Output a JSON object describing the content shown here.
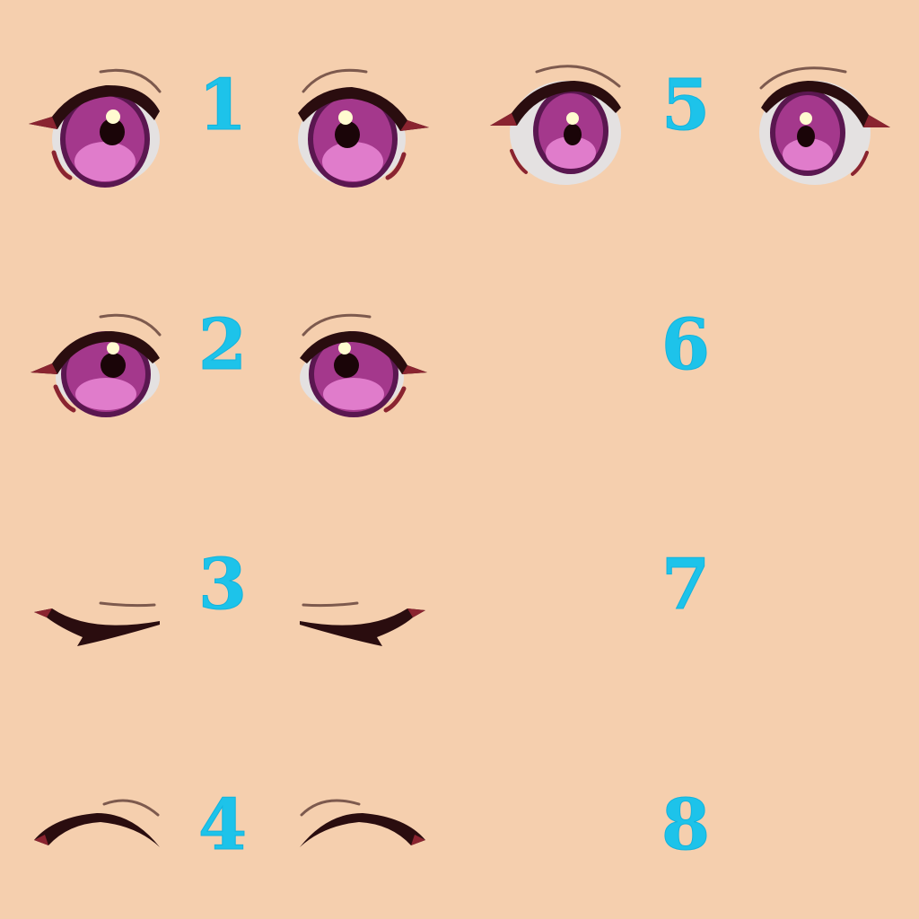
{
  "colors": {
    "background": "#f5cfae",
    "number": "#1dc3ea",
    "iris": "#a4388c",
    "iris_dark": "#5a1750",
    "iris_light": "#e07ccb",
    "pupil": "#1a0508",
    "lash": "#2a0d0f",
    "lash_tip": "#8a2430",
    "brow": "#7d5a4e",
    "sclera": "#e4e1e1",
    "highlight": "#fffbd0"
  },
  "slots": [
    {
      "label": "1",
      "expression": "eyes-open"
    },
    {
      "label": "2",
      "expression": "eyes-half-open"
    },
    {
      "label": "3",
      "expression": "eyes-closed-relaxed"
    },
    {
      "label": "4",
      "expression": "eyes-closed-smile"
    },
    {
      "label": "5",
      "expression": "eyes-wide-open"
    },
    {
      "label": "6",
      "expression": "empty"
    },
    {
      "label": "7",
      "expression": "empty"
    },
    {
      "label": "8",
      "expression": "empty"
    }
  ]
}
